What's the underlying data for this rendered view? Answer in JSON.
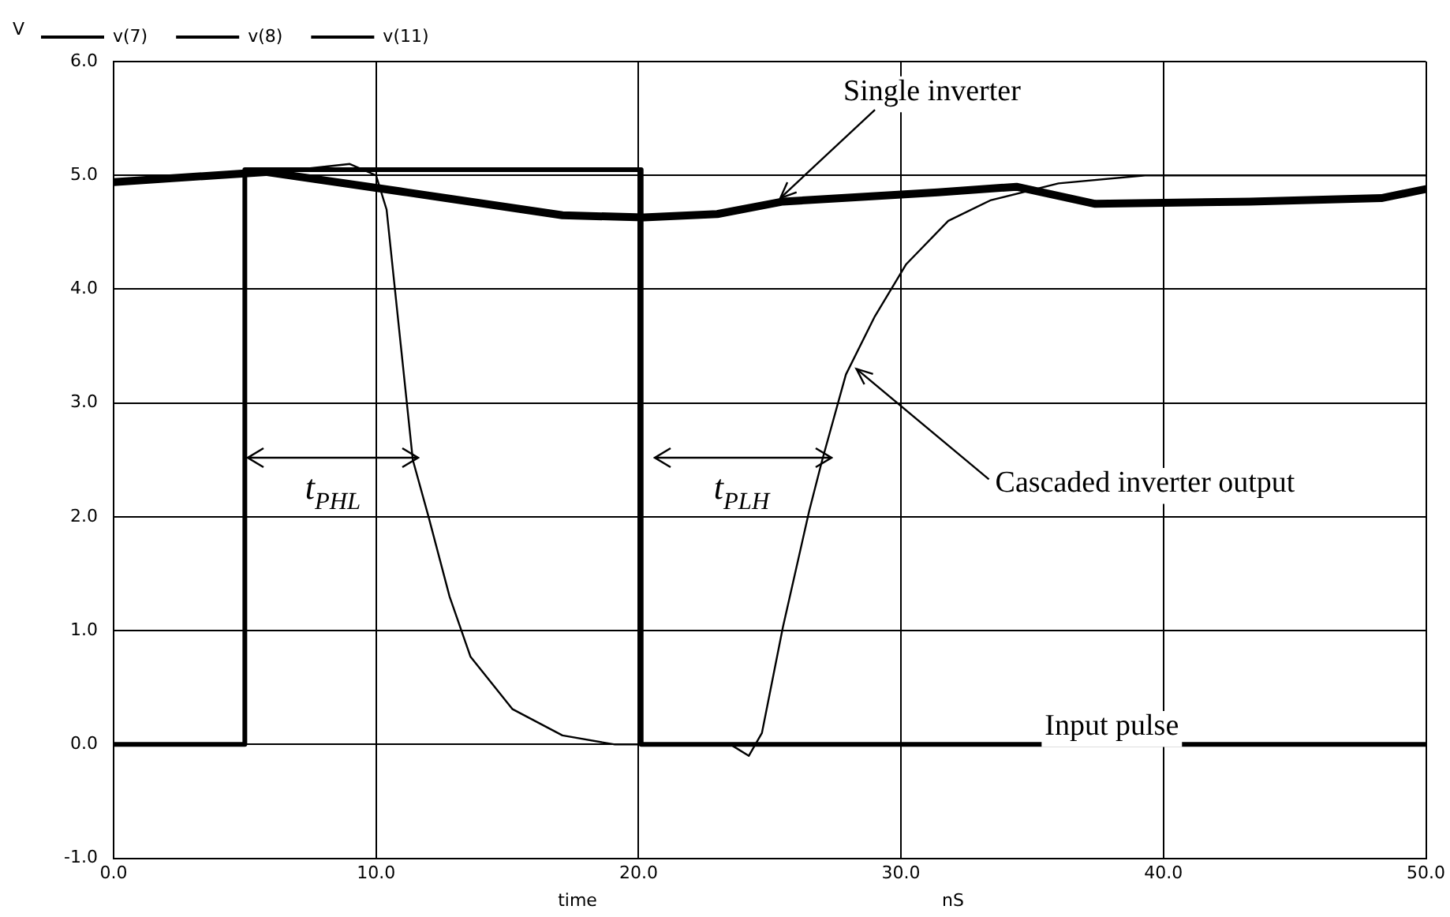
{
  "chart_data": {
    "type": "line",
    "xlabel": "time",
    "ylabel": "V",
    "xlim": [
      0,
      50
    ],
    "ylim": [
      -1,
      6
    ],
    "xticks": [
      {
        "value": 0,
        "label": "0.0"
      },
      {
        "value": 10,
        "label": "10.0"
      },
      {
        "value": 20,
        "label": "20.0"
      },
      {
        "value": 30,
        "label": "30.0"
      },
      {
        "value": 40,
        "label": "40.0"
      },
      {
        "value": 50,
        "label": "50.0"
      }
    ],
    "yticks": [
      {
        "value": -1,
        "label": "-1.0"
      },
      {
        "value": 0,
        "label": "0.0"
      },
      {
        "value": 1,
        "label": "1.0"
      },
      {
        "value": 2,
        "label": "2.0"
      },
      {
        "value": 3,
        "label": "3.0"
      },
      {
        "value": 4,
        "label": "4.0"
      },
      {
        "value": 5,
        "label": "5.0"
      },
      {
        "value": 6,
        "label": "6.0"
      }
    ],
    "grid": true,
    "legend": "top",
    "marker": "none",
    "line_style": "solid",
    "series": [
      {
        "name": "v(7)",
        "color": "#000000",
        "x": [
          0,
          5.0,
          5.0,
          20.1,
          20.1,
          50
        ],
        "values": [
          0,
          0,
          5.05,
          5.05,
          0,
          0
        ]
      },
      {
        "name": "v(8)",
        "color": "#000000",
        "x": [
          0,
          5.8,
          11.2,
          17.1,
          20.2,
          23,
          25.5,
          31.4,
          34.4,
          37.4,
          43.3,
          48.3,
          50
        ],
        "values": [
          4.94,
          5.03,
          4.85,
          4.65,
          4.63,
          4.66,
          4.77,
          4.85,
          4.9,
          4.75,
          4.77,
          4.8,
          4.88
        ]
      },
      {
        "name": "v(11)",
        "color": "#000000",
        "x": [
          0,
          5,
          9.0,
          10,
          10.4,
          11.4,
          12.0,
          12.8,
          13.6,
          15.2,
          17.1,
          19.1,
          23.5,
          24.2,
          24.7,
          25.5,
          26.5,
          27.0,
          27.9,
          29.0,
          30.2,
          31.8,
          33.4,
          36,
          39.3,
          50
        ],
        "values": [
          4.95,
          5.0,
          5.1,
          5.0,
          4.7,
          2.5,
          2.0,
          1.3,
          0.77,
          0.31,
          0.08,
          0,
          0,
          -0.1,
          0.1,
          1.03,
          2.05,
          2.5,
          3.25,
          3.76,
          4.22,
          4.6,
          4.78,
          4.93,
          5.0,
          5.0
        ]
      }
    ],
    "annotations": [
      {
        "text": "Single inverter",
        "x": 25.4,
        "y": 4.8
      },
      {
        "text": "Cascaded inverter output",
        "x": 28.3,
        "y": 3.3
      },
      {
        "text": "Input pulse",
        "x": 36.8,
        "y": 0
      },
      "t$_{PHL}$",
      "t$_{PLH}$",
      "nS"
    ]
  }
}
